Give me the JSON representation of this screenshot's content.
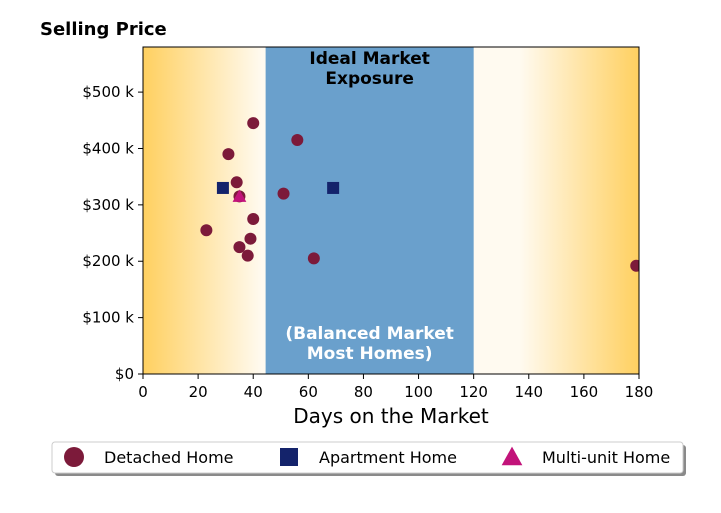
{
  "chart_data": {
    "type": "scatter",
    "title": "Selling Price",
    "xlabel": "Days on the Market",
    "ylabel": "",
    "xlim": [
      0,
      180
    ],
    "ylim": [
      0,
      580000
    ],
    "x_ticks": [
      0,
      20,
      40,
      60,
      80,
      100,
      120,
      140,
      160,
      180
    ],
    "x_tick_labels": [
      "0",
      "20",
      "40",
      "60",
      "80",
      "100",
      "120",
      "140",
      "160",
      "180"
    ],
    "y_ticks": [
      0,
      100000,
      200000,
      300000,
      400000,
      500000
    ],
    "y_tick_labels": [
      "$0",
      "$100 k",
      "$200 k",
      "$300 k",
      "$400 k",
      "$500 k"
    ],
    "grid": false,
    "legend_position": "bottom",
    "zones": [
      {
        "range": [
          44.5,
          120
        ],
        "color": "#6aa0cc",
        "label_top_lines": [
          "Ideal Market",
          "Exposure"
        ],
        "label_bottom_lines": [
          "(Balanced Market",
          "Most Homes)"
        ]
      }
    ],
    "background_gradient": {
      "edge_color": "#ffd060",
      "center_color": "#fffaf0"
    },
    "series": [
      {
        "name": "Detached Home",
        "marker": "circle",
        "color": "#7c1a3a",
        "points": [
          {
            "x": 23,
            "y": 255000
          },
          {
            "x": 31,
            "y": 390000
          },
          {
            "x": 34,
            "y": 340000
          },
          {
            "x": 35,
            "y": 315000
          },
          {
            "x": 35,
            "y": 225000
          },
          {
            "x": 38,
            "y": 210000
          },
          {
            "x": 39,
            "y": 240000
          },
          {
            "x": 40,
            "y": 445000
          },
          {
            "x": 40,
            "y": 275000
          },
          {
            "x": 51,
            "y": 320000
          },
          {
            "x": 56,
            "y": 415000
          },
          {
            "x": 62,
            "y": 205000
          },
          {
            "x": 179,
            "y": 192000
          }
        ]
      },
      {
        "name": "Apartment Home",
        "marker": "square",
        "color": "#14236b",
        "points": [
          {
            "x": 29,
            "y": 330000
          },
          {
            "x": 69,
            "y": 330000
          }
        ]
      },
      {
        "name": "Multi-unit Home",
        "marker": "triangle",
        "color": "#c2137a",
        "points": [
          {
            "x": 35,
            "y": 315000
          }
        ]
      }
    ]
  }
}
